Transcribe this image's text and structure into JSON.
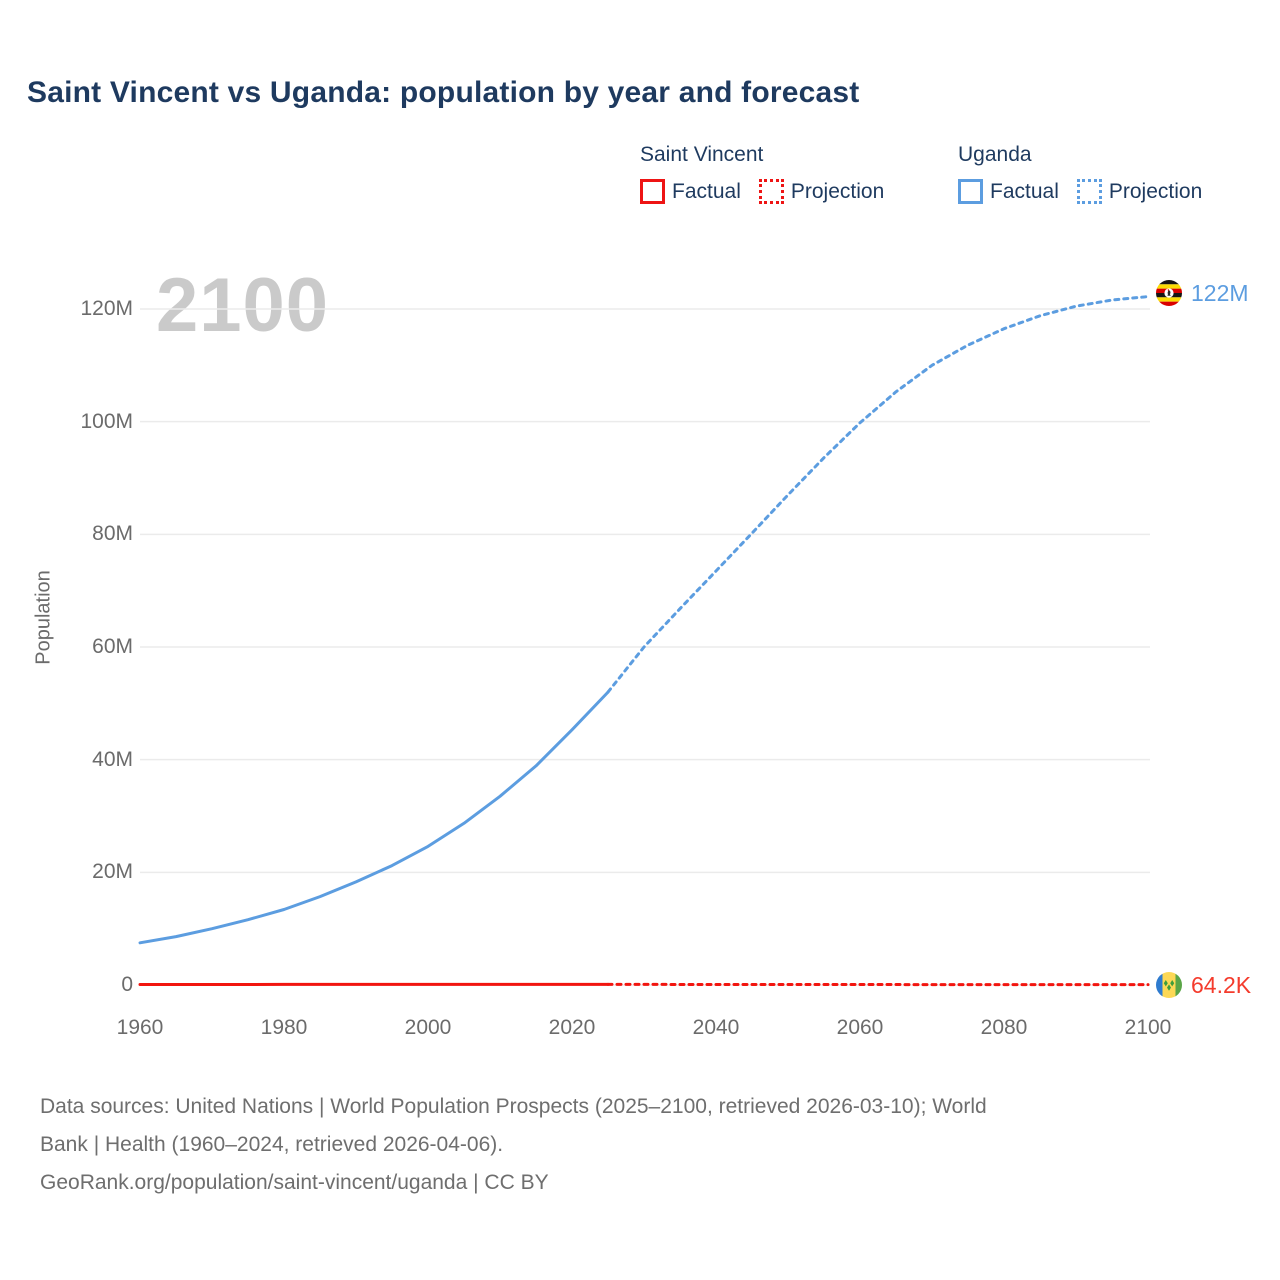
{
  "title": "Saint Vincent vs Uganda: population by year and forecast",
  "watermark": "2100",
  "legend": {
    "groups": [
      {
        "name": "Saint Vincent",
        "color": "#ee1414",
        "items": [
          {
            "label": "Factual",
            "style": "solid"
          },
          {
            "label": "Projection",
            "style": "dotted"
          }
        ]
      },
      {
        "name": "Uganda",
        "color": "#5c9de0",
        "items": [
          {
            "label": "Factual",
            "style": "solid"
          },
          {
            "label": "Projection",
            "style": "dotted"
          }
        ]
      }
    ]
  },
  "chart_data": {
    "type": "line",
    "title": "Saint Vincent vs Uganda: population by year and forecast",
    "xlabel": "",
    "ylabel": "Population",
    "xlim": [
      1960,
      2100
    ],
    "ylim": [
      0,
      130
    ],
    "grid": "horizontal",
    "legend_position": "top-right",
    "x_ticks": [
      1960,
      1980,
      2000,
      2020,
      2040,
      2060,
      2080,
      2100
    ],
    "y_ticks": [
      {
        "value": 120,
        "label": "120M"
      },
      {
        "value": 100,
        "label": "100M"
      },
      {
        "value": 80,
        "label": "80M"
      },
      {
        "value": 60,
        "label": "60M"
      },
      {
        "value": 40,
        "label": "40M"
      },
      {
        "value": 20,
        "label": "20M"
      },
      {
        "value": 0,
        "label": "0"
      }
    ],
    "unit": "millions",
    "series": [
      {
        "name": "Uganda Factual",
        "style": "solid",
        "color": "#5c9de0",
        "points": [
          [
            1960,
            7.5
          ],
          [
            1965,
            8.6
          ],
          [
            1970,
            10.0
          ],
          [
            1975,
            11.6
          ],
          [
            1980,
            13.4
          ],
          [
            1985,
            15.7
          ],
          [
            1990,
            18.3
          ],
          [
            1995,
            21.2
          ],
          [
            2000,
            24.6
          ],
          [
            2005,
            28.7
          ],
          [
            2010,
            33.5
          ],
          [
            2015,
            38.9
          ],
          [
            2020,
            45.3
          ],
          [
            2025,
            52.0
          ]
        ]
      },
      {
        "name": "Uganda Projection",
        "style": "dotted",
        "color": "#5c9de0",
        "points": [
          [
            2025,
            52.0
          ],
          [
            2030,
            60.0
          ],
          [
            2035,
            66.8
          ],
          [
            2040,
            73.5
          ],
          [
            2045,
            80.2
          ],
          [
            2050,
            87.0
          ],
          [
            2055,
            93.6
          ],
          [
            2060,
            99.8
          ],
          [
            2065,
            105.3
          ],
          [
            2070,
            110.0
          ],
          [
            2075,
            113.6
          ],
          [
            2080,
            116.5
          ],
          [
            2085,
            118.8
          ],
          [
            2090,
            120.5
          ],
          [
            2095,
            121.6
          ],
          [
            2100,
            122.2
          ]
        ]
      },
      {
        "name": "Saint Vincent Factual",
        "style": "solid",
        "color": "#f2150f",
        "points": [
          [
            1960,
            0.081
          ],
          [
            1970,
            0.089
          ],
          [
            1980,
            0.098
          ],
          [
            1990,
            0.107
          ],
          [
            2000,
            0.109
          ],
          [
            2010,
            0.109
          ],
          [
            2020,
            0.105
          ],
          [
            2025,
            0.101
          ]
        ]
      },
      {
        "name": "Saint Vincent Projection",
        "style": "dotted",
        "color": "#f2150f",
        "points": [
          [
            2025,
            0.101
          ],
          [
            2030,
            0.099
          ],
          [
            2040,
            0.095
          ],
          [
            2050,
            0.0905
          ],
          [
            2060,
            0.085
          ],
          [
            2070,
            0.0785
          ],
          [
            2080,
            0.074
          ],
          [
            2090,
            0.069
          ],
          [
            2100,
            0.0642
          ]
        ]
      }
    ],
    "end_labels": [
      {
        "series": "Uganda",
        "label": "122M",
        "color": "#5c9de0",
        "flag": "uganda-flag"
      },
      {
        "series": "Saint Vincent",
        "label": "64.2K",
        "color": "#f43b2c",
        "flag": "saint-vincent-flag"
      }
    ]
  },
  "footer": {
    "lines": [
      "Data sources: United Nations | World Population Prospects (2025–2100, retrieved 2026-03-10); World",
      "Bank | Health (1960–2024, retrieved 2026-04-06).",
      "GeoRank.org/population/saint-vincent/uganda | CC BY"
    ]
  }
}
